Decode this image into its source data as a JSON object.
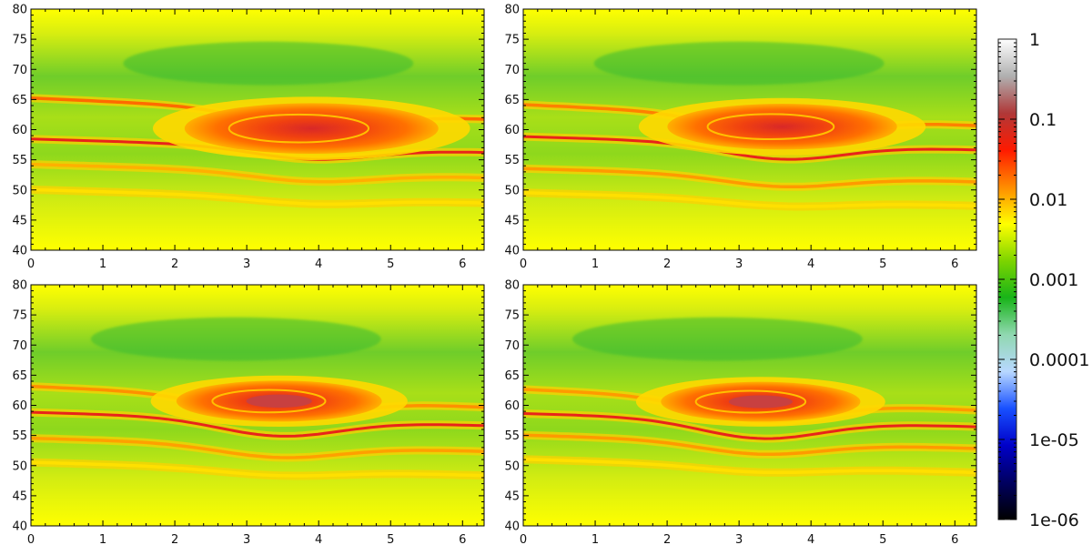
{
  "chart_data": [
    {
      "type": "heatmap",
      "panel": "top-left",
      "x_ticks": [
        "0",
        "1",
        "2",
        "3",
        "4",
        "5",
        "6"
      ],
      "y_ticks": [
        "40",
        "45",
        "50",
        "55",
        "60",
        "65",
        "70",
        "75",
        "80"
      ],
      "xlim": [
        0,
        6.3
      ],
      "ylim": [
        40,
        80
      ],
      "vortex": {
        "x": 3.9,
        "y": 60.2,
        "r": 4.2
      },
      "filaments": [
        {
          "y0": 63.6,
          "color": "#ff6a00",
          "dy": 3.0
        },
        {
          "y0": 57.4,
          "color": "#e8241a",
          "dy": 4.0
        },
        {
          "y0": 53.2,
          "color": "#ffb000",
          "dy": 3.0
        },
        {
          "y0": 49.0,
          "color": "#ffe000",
          "dy": 2.0
        }
      ]
    },
    {
      "type": "heatmap",
      "panel": "top-right",
      "x_ticks": [
        "0",
        "1",
        "2",
        "3",
        "4",
        "5",
        "6"
      ],
      "y_ticks": [
        "40",
        "45",
        "50",
        "55",
        "60",
        "65",
        "70",
        "75",
        "80"
      ],
      "xlim": [
        0,
        6.3
      ],
      "ylim": [
        40,
        80
      ],
      "vortex": {
        "x": 3.6,
        "y": 60.5,
        "r": 3.8
      },
      "filaments": [
        {
          "y0": 62.5,
          "color": "#ff8000",
          "dy": 3.5
        },
        {
          "y0": 57.8,
          "color": "#e8241a",
          "dy": 5.0
        },
        {
          "y0": 52.5,
          "color": "#ff9a00",
          "dy": 3.5
        },
        {
          "y0": 48.5,
          "color": "#ffe000",
          "dy": 2.0
        }
      ]
    },
    {
      "type": "heatmap",
      "panel": "bottom-left",
      "x_ticks": [
        "0",
        "1",
        "2",
        "3",
        "4",
        "5",
        "6"
      ],
      "y_ticks": [
        "40",
        "45",
        "50",
        "55",
        "60",
        "65",
        "70",
        "75",
        "80"
      ],
      "xlim": [
        0,
        6.3
      ],
      "ylim": [
        40,
        80
      ],
      "vortex": {
        "x": 3.45,
        "y": 60.7,
        "r": 3.4
      },
      "filaments": [
        {
          "y0": 61.5,
          "color": "#ff9000",
          "dy": 3.5
        },
        {
          "y0": 57.8,
          "color": "#e8241a",
          "dy": 5.5
        },
        {
          "y0": 53.5,
          "color": "#ffa000",
          "dy": 4.0
        },
        {
          "y0": 49.5,
          "color": "#ffe000",
          "dy": 2.0
        }
      ]
    },
    {
      "type": "heatmap",
      "panel": "bottom-right",
      "x_ticks": [
        "0",
        "1",
        "2",
        "3",
        "4",
        "5",
        "6"
      ],
      "y_ticks": [
        "40",
        "45",
        "50",
        "55",
        "60",
        "65",
        "70",
        "75",
        "80"
      ],
      "xlim": [
        0,
        6.3
      ],
      "ylim": [
        40,
        80
      ],
      "vortex": {
        "x": 3.3,
        "y": 60.6,
        "r": 3.3
      },
      "filaments": [
        {
          "y0": 61.0,
          "color": "#ff9a00",
          "dy": 3.5
        },
        {
          "y0": 57.6,
          "color": "#e8241a",
          "dy": 6.0
        },
        {
          "y0": 54.0,
          "color": "#ff9a00",
          "dy": 4.0
        },
        {
          "y0": 50.0,
          "color": "#ffe000",
          "dy": 2.0
        }
      ]
    }
  ],
  "colorbar": {
    "scale": "log",
    "labels": [
      "1",
      "0.1",
      "0.01",
      "0.001",
      "0.0001",
      "1e-05",
      "1e-06"
    ],
    "colors": [
      "#ffffff",
      "#b0b0b0",
      "#b03838",
      "#ff1a00",
      "#ff8c00",
      "#ffff00",
      "#7cd400",
      "#18b418",
      "#90d8b0",
      "#b8d8ff",
      "#1850ff",
      "#0000c8",
      "#000060",
      "#000000"
    ]
  }
}
